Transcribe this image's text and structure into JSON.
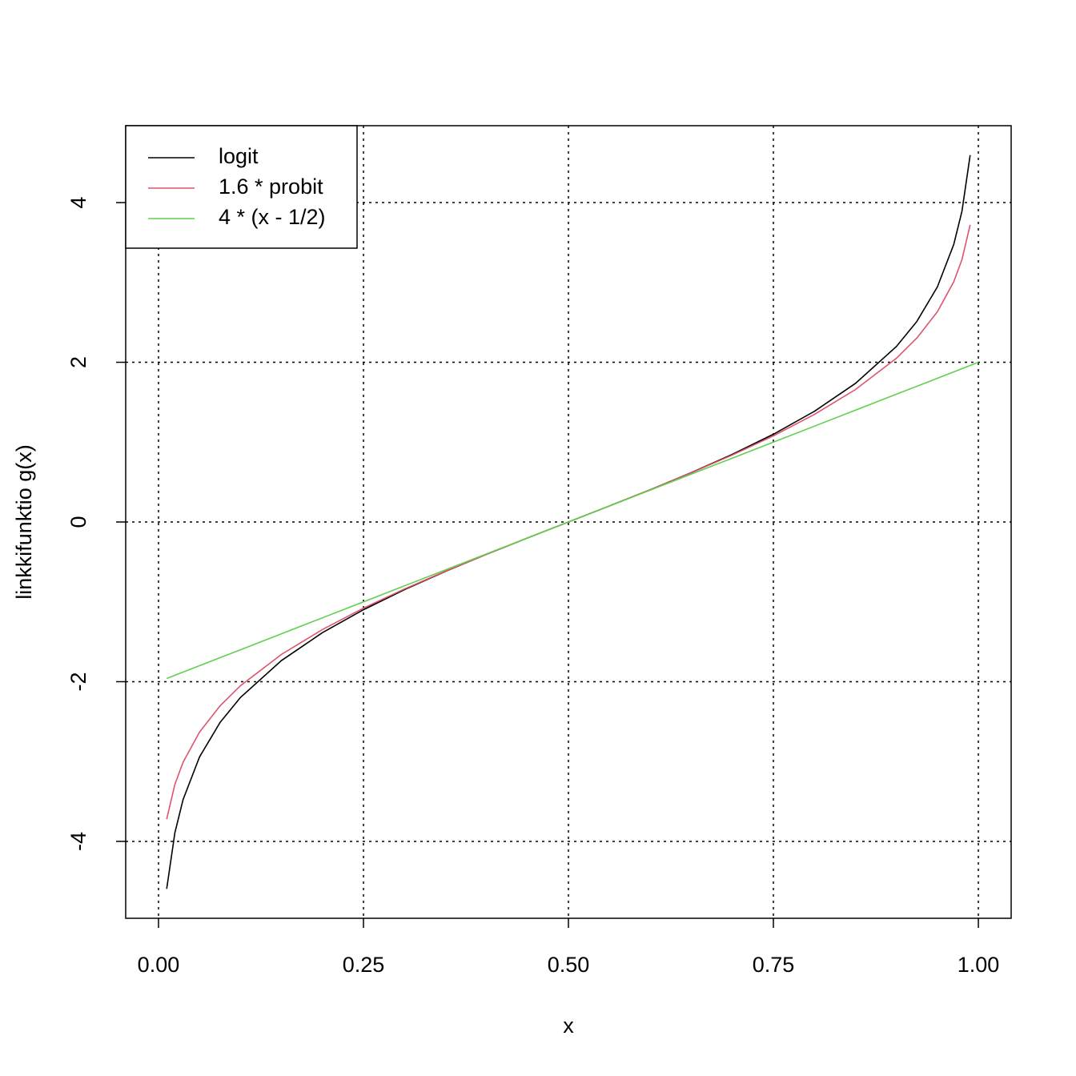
{
  "chart_data": {
    "type": "line",
    "xlabel": "x",
    "ylabel": "linkkifunktio g(x)",
    "x": [
      0.01,
      0.02,
      0.03,
      0.05,
      0.075,
      0.1,
      0.15,
      0.2,
      0.25,
      0.3,
      0.35,
      0.4,
      0.45,
      0.5,
      0.55,
      0.6,
      0.65,
      0.7,
      0.75,
      0.8,
      0.85,
      0.9,
      0.925,
      0.95,
      0.97,
      0.98,
      0.99,
      1.0
    ],
    "series": [
      {
        "name": "logit",
        "color": "#000000",
        "values": [
          -4.595,
          -3.892,
          -3.476,
          -2.944,
          -2.512,
          -2.197,
          -1.735,
          -1.386,
          -1.099,
          -0.847,
          -0.619,
          -0.405,
          -0.201,
          0,
          0.201,
          0.405,
          0.619,
          0.847,
          1.099,
          1.386,
          1.735,
          2.197,
          2.512,
          2.944,
          3.476,
          3.892,
          4.595,
          null
        ]
      },
      {
        "name": "1.6 * probit",
        "color": "#DF536B",
        "values": [
          -3.722,
          -3.286,
          -3.009,
          -2.632,
          -2.304,
          -2.05,
          -1.658,
          -1.347,
          -1.079,
          -0.839,
          -0.617,
          -0.405,
          -0.201,
          0,
          0.201,
          0.405,
          0.617,
          0.839,
          1.079,
          1.347,
          1.658,
          2.05,
          2.304,
          2.632,
          3.009,
          3.286,
          3.722,
          null
        ]
      },
      {
        "name": "4 * (x - 1/2)",
        "color": "#61D04F",
        "values": [
          -1.96,
          -1.92,
          -1.88,
          -1.8,
          -1.7,
          -1.6,
          -1.4,
          -1.2,
          -1,
          -0.8,
          -0.6,
          -0.4,
          -0.2,
          0,
          0.2,
          0.4,
          0.6,
          0.8,
          1,
          1.2,
          1.4,
          1.6,
          1.7,
          1.8,
          1.88,
          1.92,
          1.96,
          2
        ]
      }
    ],
    "xlim": [
      -0.04,
      1.04
    ],
    "ylim": [
      -4.963,
      4.963
    ],
    "xticks": [
      {
        "value": 0,
        "label": "0.00"
      },
      0.25,
      {
        "value": 0.5,
        "label": "0.50"
      },
      0.75,
      {
        "value": 1,
        "label": "1.00"
      }
    ],
    "yticks": [
      -4,
      -2,
      0,
      2,
      4
    ],
    "grid": true,
    "legend": "topleft"
  }
}
